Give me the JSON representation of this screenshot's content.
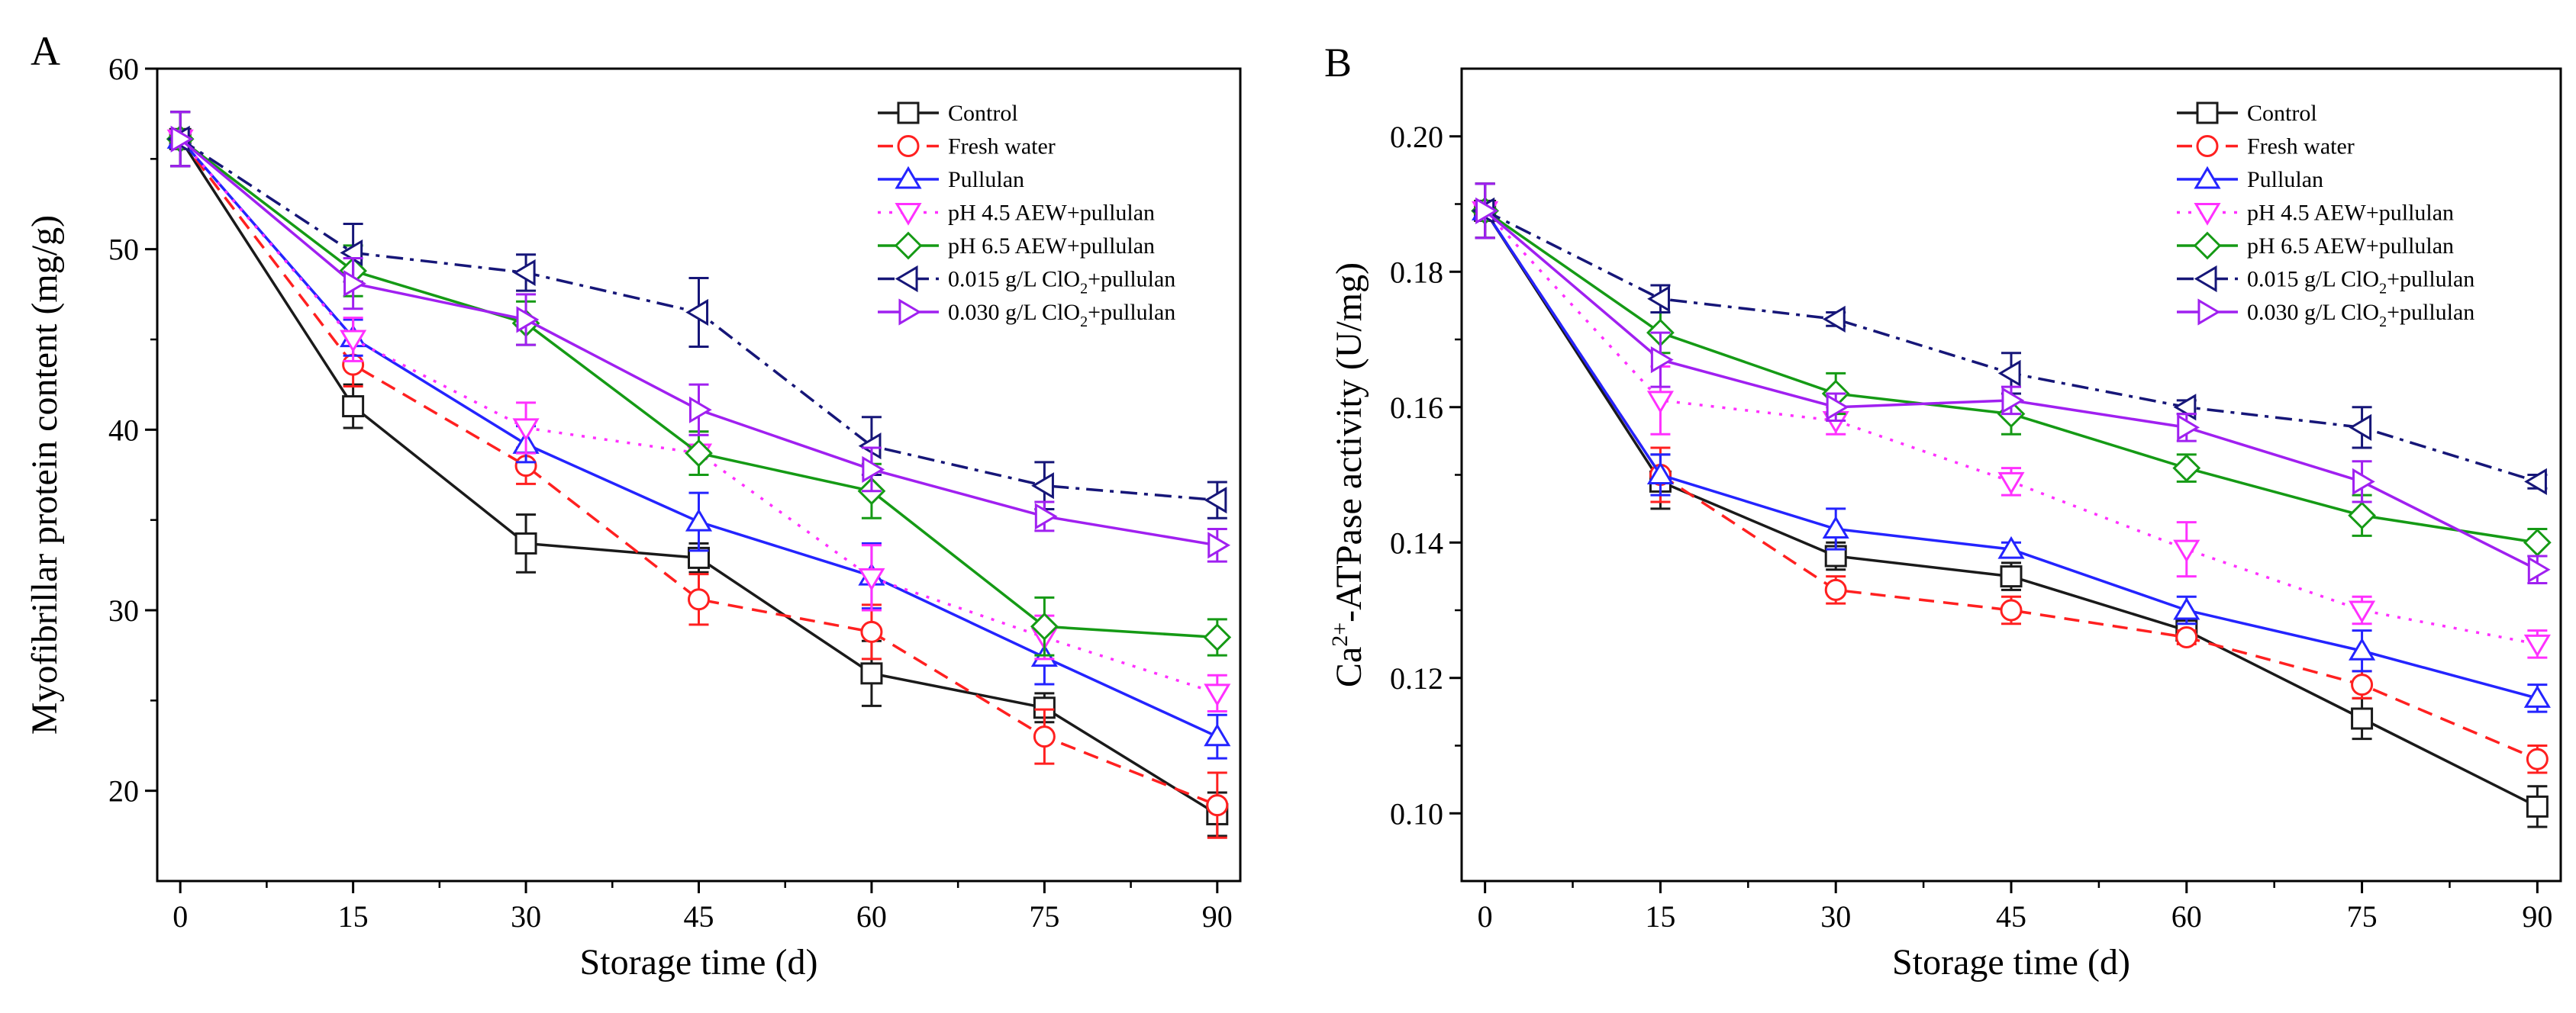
{
  "chart_data": [
    {
      "panel": "A",
      "type": "line",
      "xlabel": "Storage time (d)",
      "ylabel": "Myofibrillar protein content (mg/g)",
      "x": [
        0,
        15,
        30,
        45,
        60,
        75,
        90
      ],
      "xlim": [
        -2,
        92
      ],
      "ylim": [
        15,
        60
      ],
      "yticks": [
        20,
        30,
        40,
        50,
        60
      ],
      "ytick_labels": [
        "20",
        "30",
        "40",
        "50",
        "60"
      ],
      "series": [
        {
          "name": "Control",
          "values": [
            56.1,
            41.3,
            33.7,
            32.9,
            26.5,
            24.6,
            18.7
          ],
          "errors": [
            1.5,
            1.2,
            1.6,
            0.8,
            1.8,
            0.8,
            1.2
          ]
        },
        {
          "name": "Fresh water",
          "values": [
            56.1,
            43.6,
            38.0,
            30.6,
            28.8,
            23.0,
            19.2
          ],
          "errors": [
            1.5,
            1.2,
            1.0,
            1.4,
            1.5,
            1.5,
            1.8
          ]
        },
        {
          "name": "Pullulan",
          "values": [
            56.1,
            45.1,
            39.2,
            34.9,
            31.9,
            27.4,
            23.0
          ],
          "errors": [
            1.5,
            1.0,
            1.0,
            1.6,
            1.8,
            1.5,
            1.2
          ]
        },
        {
          "name": "pH 4.5 AEW+pullulan",
          "values": [
            56.1,
            45.0,
            40.1,
            38.7,
            31.8,
            28.5,
            25.4
          ],
          "errors": [
            1.5,
            1.2,
            1.4,
            1.2,
            1.8,
            1.2,
            1.0
          ]
        },
        {
          "name": "pH 6.5 AEW+pullulan",
          "values": [
            56.1,
            48.8,
            45.9,
            38.7,
            36.6,
            29.1,
            28.5
          ],
          "errors": [
            1.5,
            1.4,
            1.2,
            1.2,
            1.5,
            1.6,
            1.0
          ]
        },
        {
          "name": "0.015 g/L ClO2+pullulan",
          "values": [
            56.1,
            49.8,
            48.7,
            46.5,
            39.1,
            36.9,
            36.1
          ],
          "errors": [
            1.5,
            1.6,
            1.0,
            1.9,
            1.6,
            1.3,
            1.0
          ]
        },
        {
          "name": "0.030 g/L ClO2+pullulan",
          "values": [
            56.1,
            48.1,
            46.1,
            41.1,
            37.8,
            35.2,
            33.6
          ],
          "errors": [
            1.5,
            1.4,
            1.4,
            1.4,
            1.2,
            0.8,
            0.9
          ]
        }
      ]
    },
    {
      "panel": "B",
      "type": "line",
      "xlabel": "Storage time (d)",
      "ylabel": "-ATPase activity (U/mg)",
      "ylabel_prefix": "Ca",
      "ylabel_superscript": "2+",
      "x": [
        0,
        15,
        30,
        45,
        60,
        75,
        90
      ],
      "xlim": [
        -2,
        92
      ],
      "ylim": [
        0.09,
        0.21
      ],
      "yticks": [
        0.1,
        0.12,
        0.14,
        0.16,
        0.18,
        0.2
      ],
      "ytick_labels": [
        "0.10",
        "0.12",
        "0.14",
        "0.16",
        "0.18",
        "0.20"
      ],
      "series": [
        {
          "name": "Control",
          "values": [
            0.189,
            0.149,
            0.138,
            0.135,
            0.127,
            0.114,
            0.101
          ],
          "errors": [
            0.004,
            0.004,
            0.002,
            0.002,
            0.001,
            0.003,
            0.003
          ]
        },
        {
          "name": "Fresh water",
          "values": [
            0.189,
            0.15,
            0.133,
            0.13,
            0.126,
            0.119,
            0.108
          ],
          "errors": [
            0.004,
            0.004,
            0.002,
            0.002,
            0.001,
            0.002,
            0.002
          ]
        },
        {
          "name": "Pullulan",
          "values": [
            0.189,
            0.15,
            0.142,
            0.139,
            0.13,
            0.124,
            0.117
          ],
          "errors": [
            0.004,
            0.003,
            0.003,
            0.001,
            0.002,
            0.003,
            0.002
          ]
        },
        {
          "name": "pH 4.5 AEW+pullulan",
          "values": [
            0.189,
            0.161,
            0.158,
            0.149,
            0.139,
            0.13,
            0.125
          ],
          "errors": [
            0.004,
            0.005,
            0.002,
            0.002,
            0.004,
            0.002,
            0.002
          ]
        },
        {
          "name": "pH 6.5 AEW+pullulan",
          "values": [
            0.189,
            0.171,
            0.162,
            0.159,
            0.151,
            0.144,
            0.14
          ],
          "errors": [
            0.004,
            0.003,
            0.003,
            0.003,
            0.002,
            0.003,
            0.002
          ]
        },
        {
          "name": "0.015 g/L ClO2+pullulan",
          "values": [
            0.189,
            0.176,
            0.173,
            0.165,
            0.16,
            0.157,
            0.149
          ],
          "errors": [
            0.004,
            0.002,
            0.001,
            0.003,
            0.001,
            0.003,
            0.001
          ]
        },
        {
          "name": "0.030 g/L ClO2+pullulan",
          "values": [
            0.189,
            0.167,
            0.16,
            0.161,
            0.157,
            0.149,
            0.136
          ],
          "errors": [
            0.004,
            0.004,
            0.002,
            0.002,
            0.002,
            0.003,
            0.002
          ]
        }
      ]
    }
  ],
  "legend": [
    {
      "base": "Control",
      "sub": "",
      "tail": "",
      "color": "#1a1a1a",
      "dash": "solid",
      "marker": "square"
    },
    {
      "base": "Fresh water",
      "sub": "",
      "tail": "",
      "color": "#ff2020",
      "dash": "dashed",
      "marker": "circle"
    },
    {
      "base": "Pullulan",
      "sub": "",
      "tail": "",
      "color": "#2424ff",
      "dash": "solid",
      "marker": "triangle-up"
    },
    {
      "base": "pH 4.5 AEW+pullulan",
      "sub": "",
      "tail": "",
      "color": "#ff30ff",
      "dash": "dotted",
      "marker": "triangle-down"
    },
    {
      "base": "pH 6.5 AEW+pullulan",
      "sub": "",
      "tail": "",
      "color": "#159a15",
      "dash": "solid",
      "marker": "diamond"
    },
    {
      "base": "0.015 g/L ClO",
      "sub": "2",
      "tail": "+pullulan",
      "color": "#161678",
      "dash": "dashdot",
      "marker": "triangle-left"
    },
    {
      "base": "0.030 g/L ClO",
      "sub": "2",
      "tail": "+pullulan",
      "color": "#a020f0",
      "dash": "solid",
      "marker": "triangle-right"
    }
  ]
}
